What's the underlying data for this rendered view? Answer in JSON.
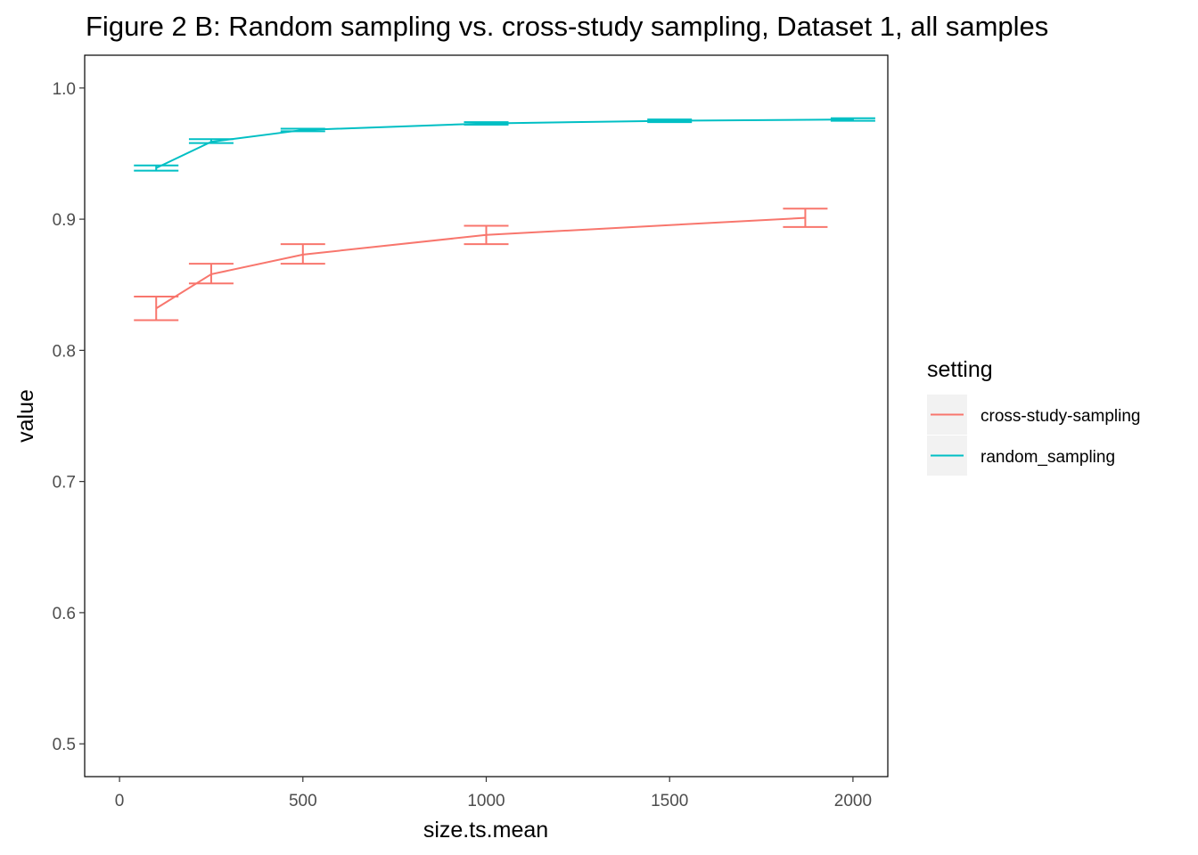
{
  "chart_data": {
    "type": "line",
    "title": "Figure 2 B: Random sampling vs. cross-study sampling, Dataset 1, all samples",
    "xlabel": "size.ts.mean",
    "ylabel": "value",
    "xlim": [
      -95,
      2095
    ],
    "ylim": [
      0.475,
      1.025
    ],
    "x_ticks": [
      0,
      500,
      1000,
      1500,
      2000
    ],
    "x_tick_labels": [
      "0",
      "500",
      "1000",
      "1500",
      "2000"
    ],
    "y_ticks": [
      0.5,
      0.6,
      0.7,
      0.8,
      0.9,
      1.0
    ],
    "y_tick_labels": [
      "0.5",
      "0.6",
      "0.7",
      "0.8",
      "0.9",
      "1.0"
    ],
    "grid": false,
    "error_bars": true,
    "legend": {
      "title": "setting",
      "position": "right"
    },
    "series": [
      {
        "name": "cross-study-sampling",
        "color": "#F8766D",
        "points": [
          {
            "x": 100,
            "y": 0.832,
            "ymin": 0.823,
            "ymax": 0.841
          },
          {
            "x": 250,
            "y": 0.858,
            "ymin": 0.851,
            "ymax": 0.866
          },
          {
            "x": 500,
            "y": 0.873,
            "ymin": 0.866,
            "ymax": 0.881
          },
          {
            "x": 1000,
            "y": 0.888,
            "ymin": 0.881,
            "ymax": 0.895
          },
          {
            "x": 1870,
            "y": 0.901,
            "ymin": 0.894,
            "ymax": 0.908
          }
        ]
      },
      {
        "name": "random_sampling",
        "color": "#00BFC4",
        "points": [
          {
            "x": 100,
            "y": 0.939,
            "ymin": 0.937,
            "ymax": 0.941
          },
          {
            "x": 250,
            "y": 0.959,
            "ymin": 0.958,
            "ymax": 0.961
          },
          {
            "x": 500,
            "y": 0.968,
            "ymin": 0.967,
            "ymax": 0.969
          },
          {
            "x": 1000,
            "y": 0.973,
            "ymin": 0.972,
            "ymax": 0.974
          },
          {
            "x": 1500,
            "y": 0.975,
            "ymin": 0.974,
            "ymax": 0.976
          },
          {
            "x": 2000,
            "y": 0.976,
            "ymin": 0.975,
            "ymax": 0.977
          }
        ]
      }
    ]
  }
}
